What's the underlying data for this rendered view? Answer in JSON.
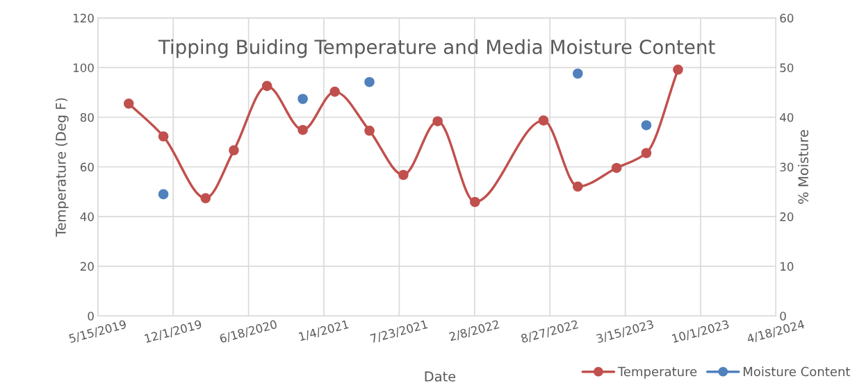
{
  "chart_data": {
    "type": "line",
    "title": "Tipping Buiding Temperature and Media Moisture Content",
    "xlabel": "Date",
    "ylabel": "Temperature (Deg F)",
    "y2label": "% Moisture",
    "series": [
      {
        "name": "Temperature",
        "color": "#c0504d",
        "x": [
          "2019-08-05",
          "2019-11-05",
          "2020-02-25",
          "2020-05-10",
          "2020-08-06",
          "2020-11-09",
          "2021-02-02",
          "2021-05-05",
          "2021-08-03",
          "2021-11-02",
          "2022-02-09",
          "2022-08-10",
          "2022-11-09",
          "2023-02-20",
          "2023-05-10",
          "2023-08-02"
        ],
        "values": [
          85.5,
          72.3,
          47.4,
          66.7,
          92.6,
          74.9,
          90.3,
          74.6,
          56.8,
          78.4,
          45.9,
          78.7,
          52.1,
          59.6,
          65.6,
          99.2
        ]
      },
      {
        "name": "Moisture Content",
        "color": "#4f81bd",
        "type": "scatter",
        "axis": "y2",
        "x": [
          "2019-11-05",
          "2020-11-09",
          "2021-05-05",
          "2022-11-09",
          "2023-05-10"
        ],
        "values": [
          24.5,
          43.7,
          47.1,
          48.8,
          38.4
        ]
      }
    ],
    "xlim": [
      "2019-05-15",
      "2024-04-18"
    ],
    "xticks": [
      {
        "value": "2019-05-15",
        "label": "5/15/2019"
      },
      {
        "value": "2019-12-01",
        "label": "12/1/2019"
      },
      {
        "value": "2020-06-18",
        "label": "6/18/2020"
      },
      {
        "value": "2021-01-04",
        "label": "1/4/2021"
      },
      {
        "value": "2021-07-23",
        "label": "7/23/2021"
      },
      {
        "value": "2022-02-08",
        "label": "2/8/2022"
      },
      {
        "value": "2022-08-27",
        "label": "8/27/2022"
      },
      {
        "value": "2023-03-15",
        "label": "3/15/2023"
      },
      {
        "value": "2023-10-01",
        "label": "10/1/2023"
      },
      {
        "value": "2024-04-18",
        "label": "4/18/2024"
      }
    ],
    "ylim": [
      0,
      120
    ],
    "yticks": [
      0,
      20,
      40,
      60,
      80,
      100,
      120
    ],
    "y2lim": [
      0,
      60
    ],
    "y2ticks": [
      0,
      10,
      20,
      30,
      40,
      50,
      60
    ],
    "grid": true,
    "legend": "bottom right",
    "marker": "circle",
    "line_style": "solid"
  }
}
